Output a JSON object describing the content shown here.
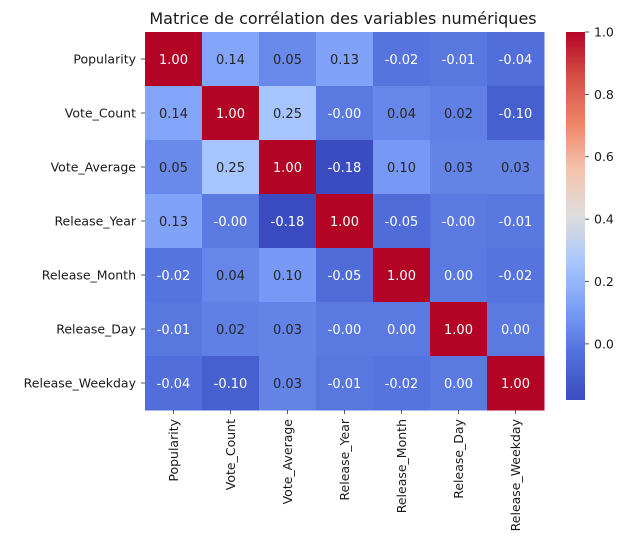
{
  "chart_data": {
    "type": "heatmap",
    "title": "Matrice de corrélation des variables numériques",
    "variables": [
      "Popularity",
      "Vote_Count",
      "Vote_Average",
      "Release_Year",
      "Release_Month",
      "Release_Day",
      "Release_Weekday"
    ],
    "matrix": [
      [
        1.0,
        0.14,
        0.05,
        0.13,
        -0.02,
        -0.01,
        -0.04
      ],
      [
        0.14,
        1.0,
        0.25,
        -0.0,
        0.04,
        0.02,
        -0.1
      ],
      [
        0.05,
        0.25,
        1.0,
        -0.18,
        0.1,
        0.03,
        0.03
      ],
      [
        0.13,
        -0.0,
        -0.18,
        1.0,
        -0.05,
        -0.0,
        -0.01
      ],
      [
        -0.02,
        0.04,
        0.1,
        -0.05,
        1.0,
        0.0,
        -0.02
      ],
      [
        -0.01,
        0.02,
        0.03,
        -0.0,
        0.0,
        1.0,
        0.0
      ],
      [
        -0.04,
        -0.1,
        0.03,
        -0.01,
        -0.02,
        0.0,
        1.0
      ]
    ],
    "value_format": "0.00",
    "colormap": "coolwarm",
    "colorbar": {
      "range": [
        -0.18,
        1.0
      ],
      "ticks": [
        0.0,
        0.2,
        0.4,
        0.6,
        0.8,
        1.0
      ],
      "tick_labels": [
        "0.0",
        "0.2",
        "0.4",
        "0.6",
        "0.8",
        "1.0"
      ]
    },
    "xlabel": "",
    "ylabel": "",
    "grid": false
  }
}
